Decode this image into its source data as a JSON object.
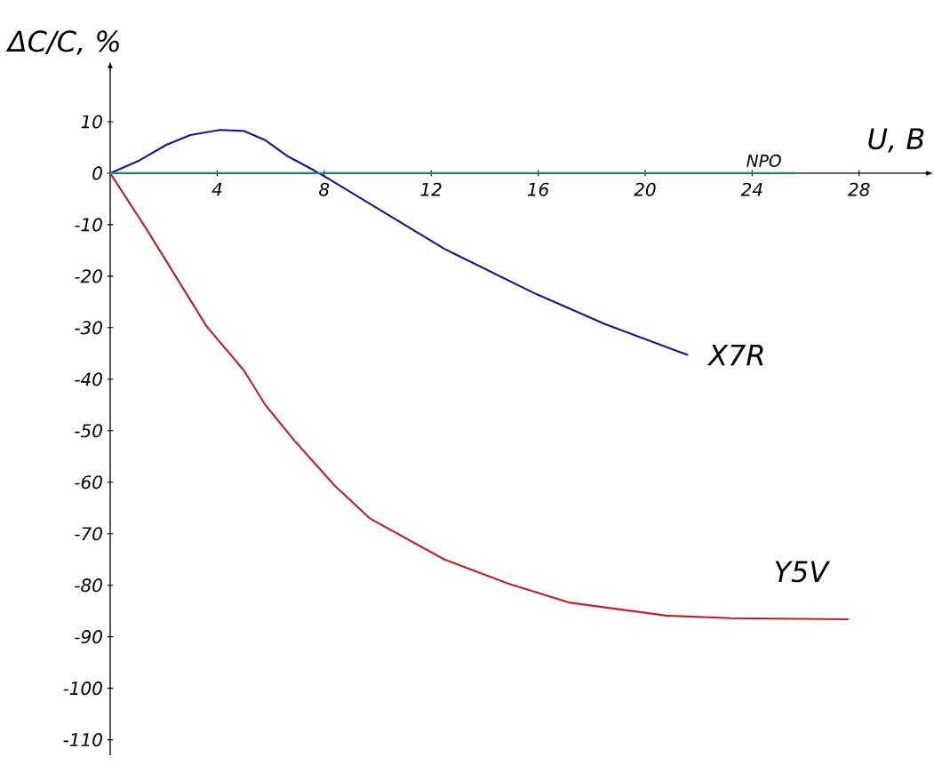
{
  "chart_data": {
    "type": "line",
    "xlabel": "U, B",
    "ylabel": "ΔC/C, %",
    "xlim": [
      0,
      30.5
    ],
    "ylim": [
      -113,
      20
    ],
    "xticks": [
      4,
      8,
      12,
      16,
      20,
      24,
      28
    ],
    "yticks": [
      10,
      0,
      -10,
      -20,
      -30,
      -40,
      -50,
      -60,
      -70,
      -80,
      -90,
      -100,
      -110
    ],
    "series": [
      {
        "name": "X7R",
        "color": "#17178a",
        "x": [
          0,
          1.1,
          2.1,
          3,
          4.1,
          5,
          5.8,
          6.6,
          7.5,
          8.2,
          10.3,
          12.5,
          15.9,
          18.5,
          21.6
        ],
        "values": [
          0,
          2.5,
          5.5,
          7.4,
          8.4,
          8.2,
          6.4,
          3.4,
          0.9,
          -1.2,
          -7.8,
          -14.7,
          -23.4,
          -29.3,
          -35.3
        ]
      },
      {
        "name": "Y5V",
        "color": "#c0202a",
        "x": [
          0,
          1.4,
          3.6,
          5,
          5.8,
          6.9,
          8.4,
          9.7,
          12.5,
          14.9,
          17.2,
          20.8,
          23.2,
          27.6
        ],
        "values": [
          0,
          -11.2,
          -29.7,
          -38.3,
          -45,
          -52,
          -60.7,
          -67,
          -75,
          -79.7,
          -83.4,
          -85.9,
          -86.4,
          -86.6
        ]
      },
      {
        "name": "NPO",
        "color": "#2a7a7a",
        "x": [
          0,
          25.6
        ],
        "values": [
          0,
          0
        ]
      }
    ]
  }
}
